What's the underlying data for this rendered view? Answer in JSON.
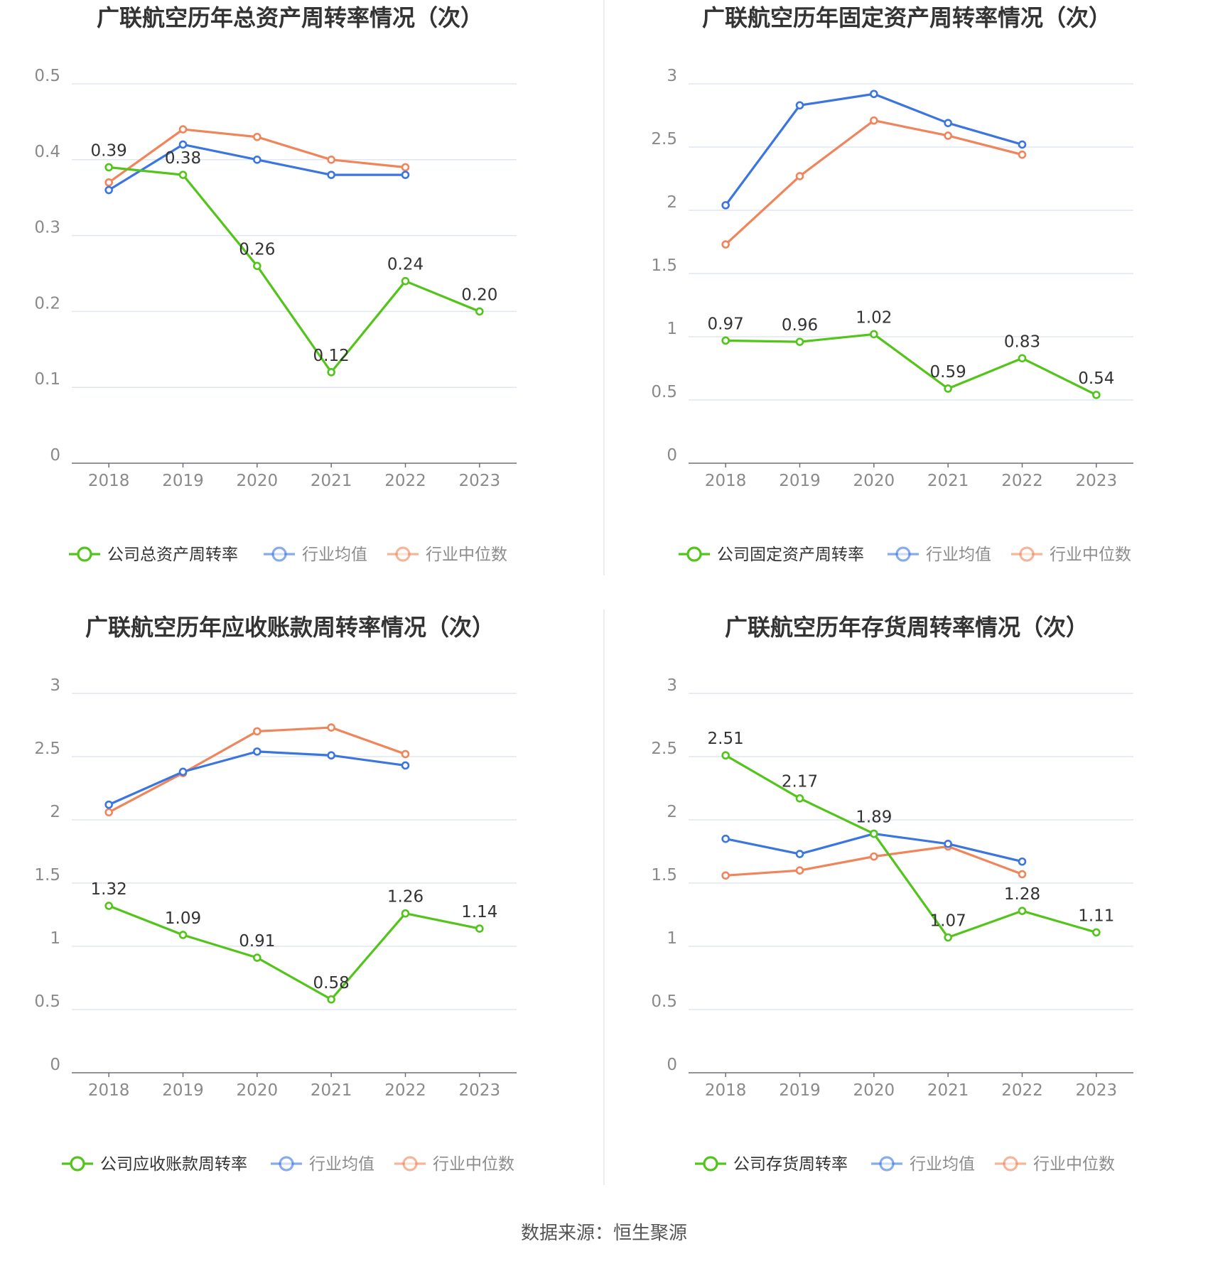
{
  "source": "数据来源：恒生聚源",
  "chart_data": [
    {
      "type": "line",
      "title": "广联航空历年总资产周转率情况（次）",
      "categories": [
        "2018",
        "2019",
        "2020",
        "2021",
        "2022",
        "2023"
      ],
      "ylim": [
        0,
        0.5
      ],
      "yticks": [
        "0",
        "0.1",
        "0.2",
        "0.3",
        "0.4",
        "0.5"
      ],
      "series": [
        {
          "name": "公司总资产周转率",
          "color": "#52c41a",
          "values": [
            0.39,
            0.38,
            0.26,
            0.12,
            0.24,
            0.2
          ],
          "labels": [
            "0.39",
            "0.38",
            "0.26",
            "0.12",
            "0.24",
            "0.20"
          ]
        },
        {
          "name": "行业均值",
          "color": "#3a75e0",
          "values": [
            0.36,
            0.42,
            0.4,
            0.38,
            0.38,
            null
          ]
        },
        {
          "name": "行业中位数",
          "color": "#f0845a",
          "values": [
            0.37,
            0.44,
            0.43,
            0.4,
            0.39,
            null
          ]
        }
      ]
    },
    {
      "type": "line",
      "title": "广联航空历年固定资产周转率情况（次）",
      "categories": [
        "2018",
        "2019",
        "2020",
        "2021",
        "2022",
        "2023"
      ],
      "ylim": [
        0,
        3
      ],
      "yticks": [
        "0",
        "0.5",
        "1",
        "1.5",
        "2",
        "2.5",
        "3"
      ],
      "series": [
        {
          "name": "公司固定资产周转率",
          "color": "#52c41a",
          "values": [
            0.97,
            0.96,
            1.02,
            0.59,
            0.83,
            0.54
          ],
          "labels": [
            "0.97",
            "0.96",
            "1.02",
            "0.59",
            "0.83",
            "0.54"
          ]
        },
        {
          "name": "行业均值",
          "color": "#3a75e0",
          "values": [
            2.04,
            2.83,
            2.92,
            2.69,
            2.52,
            null
          ]
        },
        {
          "name": "行业中位数",
          "color": "#f0845a",
          "values": [
            1.73,
            2.27,
            2.71,
            2.59,
            2.44,
            null
          ]
        }
      ]
    },
    {
      "type": "line",
      "title": "广联航空历年应收账款周转率情况（次）",
      "categories": [
        "2018",
        "2019",
        "2020",
        "2021",
        "2022",
        "2023"
      ],
      "ylim": [
        0,
        3
      ],
      "yticks": [
        "0",
        "0.5",
        "1",
        "1.5",
        "2",
        "2.5",
        "3"
      ],
      "series": [
        {
          "name": "公司应收账款周转率",
          "color": "#52c41a",
          "values": [
            1.32,
            1.09,
            0.91,
            0.58,
            1.26,
            1.14
          ],
          "labels": [
            "1.32",
            "1.09",
            "0.91",
            "0.58",
            "1.26",
            "1.14"
          ]
        },
        {
          "name": "行业均值",
          "color": "#3a75e0",
          "values": [
            2.12,
            2.38,
            2.54,
            2.51,
            2.43,
            null
          ]
        },
        {
          "name": "行业中位数",
          "color": "#f0845a",
          "values": [
            2.06,
            2.37,
            2.7,
            2.73,
            2.52,
            null
          ]
        }
      ]
    },
    {
      "type": "line",
      "title": "广联航空历年存货周转率情况（次）",
      "categories": [
        "2018",
        "2019",
        "2020",
        "2021",
        "2022",
        "2023"
      ],
      "ylim": [
        0,
        3
      ],
      "yticks": [
        "0",
        "0.5",
        "1",
        "1.5",
        "2",
        "2.5",
        "3"
      ],
      "series": [
        {
          "name": "公司存货周转率",
          "color": "#52c41a",
          "values": [
            2.51,
            2.17,
            1.89,
            1.07,
            1.28,
            1.11
          ],
          "labels": [
            "2.51",
            "2.17",
            "1.89",
            "1.07",
            "1.28",
            "1.11"
          ]
        },
        {
          "name": "行业均值",
          "color": "#3a75e0",
          "values": [
            1.85,
            1.73,
            1.89,
            1.81,
            1.67,
            null
          ]
        },
        {
          "name": "行业中位数",
          "color": "#f0845a",
          "values": [
            1.56,
            1.6,
            1.71,
            1.79,
            1.57,
            null
          ]
        }
      ]
    }
  ]
}
